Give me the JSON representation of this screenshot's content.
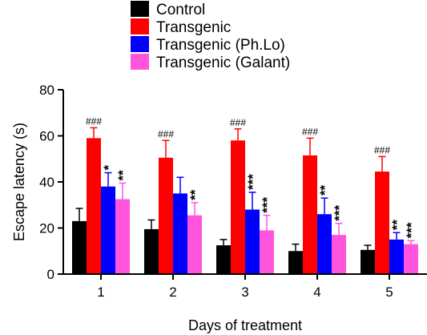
{
  "chart_data": {
    "type": "bar",
    "title": "",
    "xlabel": "Days of treatment",
    "ylabel": "Escape latency (s)",
    "ylim": [
      0,
      80
    ],
    "yticks": [
      0,
      20,
      40,
      60,
      80
    ],
    "categories": [
      "1",
      "2",
      "3",
      "4",
      "5"
    ],
    "grid": false,
    "legend_position": "top-center",
    "series": [
      {
        "name": "Control",
        "color": "#000000",
        "values": [
          23,
          19.5,
          12.5,
          10,
          10.5
        ],
        "errors": [
          5.5,
          4,
          2.5,
          3,
          2
        ],
        "annotations": [
          "",
          "",
          "",
          "",
          ""
        ]
      },
      {
        "name": "Transgenic",
        "color": "#ff0000",
        "values": [
          59,
          50.5,
          58,
          51.5,
          44.5
        ],
        "errors": [
          4.5,
          7.5,
          5,
          7.5,
          6.5
        ],
        "annotations": [
          "###",
          "###",
          "###",
          "###",
          "###"
        ]
      },
      {
        "name": "Transgenic (Ph.Lo)",
        "color": "#0000ff",
        "values": [
          38,
          35,
          28,
          26,
          15
        ],
        "errors": [
          6,
          7,
          7.5,
          7,
          3
        ],
        "annotations": [
          "*",
          "",
          "***",
          "**",
          "**"
        ]
      },
      {
        "name": "Transgenic (Galant)",
        "color": "#ff55dd",
        "values": [
          32.5,
          25.5,
          19,
          17,
          13
        ],
        "errors": [
          7,
          5.5,
          6.5,
          5,
          1.5
        ],
        "annotations": [
          "**",
          "**",
          "***",
          "***",
          "***"
        ]
      }
    ]
  }
}
